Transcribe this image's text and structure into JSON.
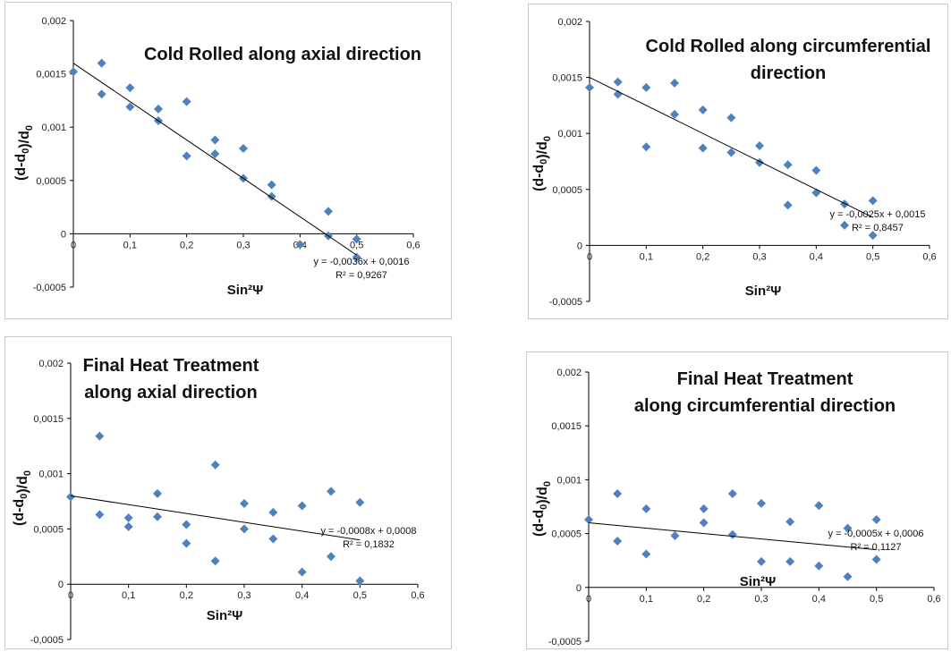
{
  "colors": {
    "marker": "#4f81bd",
    "trendline": "#000000",
    "axis": "#000000",
    "border": "#c8c8c8"
  },
  "chart_data": [
    {
      "type": "scatter",
      "title_lines": [
        "Cold Rolled along axial direction"
      ],
      "xlabel": "Sin²Ψ",
      "ylabel": "(d-d0)/d0",
      "xlim": [
        0,
        0.6
      ],
      "ylim": [
        -0.0005,
        0.002
      ],
      "x_ticks": [
        "0",
        "0,1",
        "0,2",
        "0,3",
        "0,4",
        "0,5",
        "0,6"
      ],
      "y_ticks": [
        "-0,0005",
        "0",
        "0,0005",
        "0,001",
        "0,0015",
        "0,002"
      ],
      "grid": false,
      "points": [
        [
          0,
          0.00152
        ],
        [
          0.05,
          0.0016
        ],
        [
          0.05,
          0.00131
        ],
        [
          0.1,
          0.00137
        ],
        [
          0.1,
          0.00119
        ],
        [
          0.15,
          0.00117
        ],
        [
          0.15,
          0.00106
        ],
        [
          0.2,
          0.00124
        ],
        [
          0.2,
          0.00073
        ],
        [
          0.25,
          0.00088
        ],
        [
          0.25,
          0.00075
        ],
        [
          0.3,
          0.0008
        ],
        [
          0.3,
          0.00052
        ],
        [
          0.35,
          0.00046
        ],
        [
          0.35,
          0.00035
        ],
        [
          0.4,
          -0.0001
        ],
        [
          0.45,
          0.00021
        ],
        [
          0.45,
          -2e-05
        ],
        [
          0.5,
          -5e-05
        ],
        [
          0.5,
          -0.00022
        ]
      ],
      "trendline": {
        "slope": -0.0036,
        "intercept": 0.0016
      },
      "equation": "y = -0,0036x + 0,0016",
      "r2": "R² = 0,9267"
    },
    {
      "type": "scatter",
      "title_lines": [
        "Cold Rolled along circumferential",
        "direction"
      ],
      "xlabel": "Sin²Ψ",
      "ylabel": "(d-d0)/d0",
      "xlim": [
        0,
        0.6
      ],
      "ylim": [
        -0.0005,
        0.002
      ],
      "x_ticks": [
        "0",
        "0,1",
        "0,2",
        "0,3",
        "0,4",
        "0,5",
        "0,6"
      ],
      "y_ticks": [
        "-0,0005",
        "0",
        "0,0005",
        "0,001",
        "0,0015",
        "0,002"
      ],
      "grid": false,
      "points": [
        [
          0,
          0.00141
        ],
        [
          0.05,
          0.00146
        ],
        [
          0.05,
          0.00135
        ],
        [
          0.1,
          0.00141
        ],
        [
          0.1,
          0.00088
        ],
        [
          0.15,
          0.00145
        ],
        [
          0.15,
          0.00117
        ],
        [
          0.2,
          0.00121
        ],
        [
          0.2,
          0.00087
        ],
        [
          0.25,
          0.00114
        ],
        [
          0.25,
          0.00083
        ],
        [
          0.3,
          0.00089
        ],
        [
          0.3,
          0.00074
        ],
        [
          0.35,
          0.00072
        ],
        [
          0.35,
          0.00036
        ],
        [
          0.4,
          0.00067
        ],
        [
          0.4,
          0.00047
        ],
        [
          0.45,
          0.00037
        ],
        [
          0.45,
          0.00018
        ],
        [
          0.5,
          0.0004
        ],
        [
          0.5,
          9e-05
        ]
      ],
      "trendline": {
        "slope": -0.0025,
        "intercept": 0.0015
      },
      "equation": "y = -0,0025x + 0,0015",
      "r2": "R² = 0,8457"
    },
    {
      "type": "scatter",
      "title_lines": [
        "Final Heat Treatment",
        "along axial direction"
      ],
      "xlabel": "Sin²Ψ",
      "ylabel": "(d-d0)/d0",
      "xlim": [
        0,
        0.6
      ],
      "ylim": [
        -0.0005,
        0.002
      ],
      "x_ticks": [
        "0",
        "0,1",
        "0,2",
        "0,3",
        "0,4",
        "0,5",
        "0,6"
      ],
      "y_ticks": [
        "-0,0005",
        "0",
        "0,0005",
        "0,001",
        "0,0015",
        "0,002"
      ],
      "grid": false,
      "points": [
        [
          0,
          0.00079
        ],
        [
          0.05,
          0.00134
        ],
        [
          0.05,
          0.00063
        ],
        [
          0.1,
          0.0006
        ],
        [
          0.1,
          0.00052
        ],
        [
          0.15,
          0.00082
        ],
        [
          0.15,
          0.00061
        ],
        [
          0.2,
          0.00054
        ],
        [
          0.2,
          0.00037
        ],
        [
          0.25,
          0.00108
        ],
        [
          0.25,
          0.00021
        ],
        [
          0.3,
          0.00073
        ],
        [
          0.3,
          0.0005
        ],
        [
          0.35,
          0.00065
        ],
        [
          0.35,
          0.00041
        ],
        [
          0.4,
          0.00071
        ],
        [
          0.4,
          0.00011
        ],
        [
          0.45,
          0.00084
        ],
        [
          0.45,
          0.00025
        ],
        [
          0.5,
          0.00074
        ],
        [
          0.5,
          3e-05
        ]
      ],
      "trendline": {
        "slope": -0.0008,
        "intercept": 0.0008
      },
      "equation": "y = -0,0008x + 0,0008",
      "r2": "R² = 0,1832"
    },
    {
      "type": "scatter",
      "title_lines": [
        "Final Heat Treatment",
        "along circumferential direction"
      ],
      "xlabel": "Sin²Ψ",
      "ylabel": "(d-d0)/d0",
      "xlim": [
        0,
        0.6
      ],
      "ylim": [
        -0.0005,
        0.002
      ],
      "x_ticks": [
        "0",
        "0,1",
        "0,2",
        "0,3",
        "0,4",
        "0,5",
        "0,6"
      ],
      "y_ticks": [
        "-0,0005",
        "0",
        "0,0005",
        "0,001",
        "0,0015",
        "0,002"
      ],
      "grid": false,
      "points": [
        [
          0,
          0.00063
        ],
        [
          0.05,
          0.00087
        ],
        [
          0.05,
          0.00043
        ],
        [
          0.1,
          0.00073
        ],
        [
          0.1,
          0.00031
        ],
        [
          0.15,
          0.00048
        ],
        [
          0.2,
          0.00073
        ],
        [
          0.2,
          0.0006
        ],
        [
          0.25,
          0.00087
        ],
        [
          0.25,
          0.00049
        ],
        [
          0.3,
          0.00078
        ],
        [
          0.3,
          0.00024
        ],
        [
          0.35,
          0.00061
        ],
        [
          0.35,
          0.00024
        ],
        [
          0.4,
          0.00076
        ],
        [
          0.4,
          0.0002
        ],
        [
          0.45,
          0.00055
        ],
        [
          0.45,
          0.0001
        ],
        [
          0.5,
          0.00063
        ],
        [
          0.5,
          0.00026
        ]
      ],
      "trendline": {
        "slope": -0.0005,
        "intercept": 0.0006
      },
      "equation": "y = -0,0005x + 0,0006",
      "r2": "R² = 0,1127"
    }
  ]
}
